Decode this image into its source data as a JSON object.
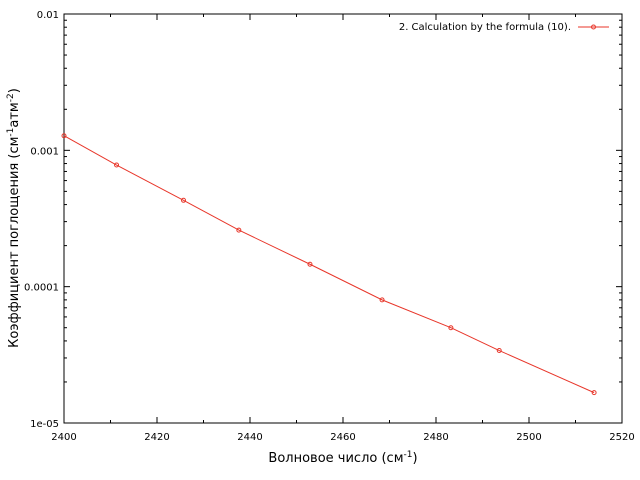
{
  "chart_data": {
    "type": "line",
    "title": "",
    "xlabel": "Волновое число (см",
    "xlabel_sup": "-1",
    "xlabel_end": ")",
    "ylabel_parts": [
      "Коэффициент поглощения (см",
      "-1",
      "атм",
      "-2",
      ")"
    ],
    "xlim": [
      2400,
      2520
    ],
    "ylim": [
      1e-05,
      0.01
    ],
    "yscale": "log",
    "grid": false,
    "legend_position": "top-right",
    "x_ticks": [
      2400,
      2420,
      2440,
      2460,
      2480,
      2500,
      2520
    ],
    "x_tick_labels": [
      "2400",
      "2420",
      "2440",
      "2460",
      "2480",
      "2500",
      "2520"
    ],
    "y_ticks": [
      1e-05,
      0.0001,
      0.001,
      0.01
    ],
    "y_tick_labels": [
      "1e-05",
      "0.0001",
      "0.001",
      "0.01"
    ],
    "series": [
      {
        "name": "2. Calculation by the formula (10).",
        "color": "#e8362a",
        "x": [
          2400,
          2411.3,
          2425.7,
          2437.6,
          2452.9,
          2468.4,
          2483.2,
          2493.6,
          2514
        ],
        "y": [
          0.00128,
          0.00078,
          0.00043,
          0.00026,
          0.000146,
          8e-05,
          5e-05,
          3.4e-05,
          1.67e-05
        ]
      }
    ]
  }
}
